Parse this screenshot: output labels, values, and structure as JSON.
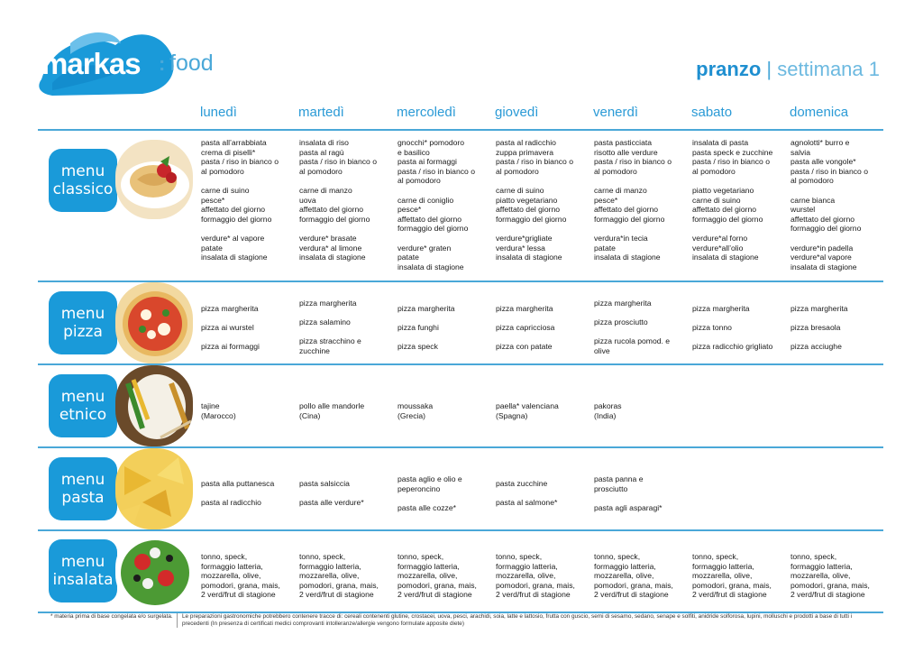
{
  "brand": {
    "name": "markas",
    "sub": "food"
  },
  "title": {
    "main": "pranzo",
    "separator": "|",
    "sub": "settimana 1"
  },
  "days": [
    "lunedì",
    "martedì",
    "mercoledì",
    "giovedì",
    "venerdì",
    "sabato",
    "domenica"
  ],
  "sections": [
    {
      "label_line1": "menu",
      "label_line2": "classico",
      "cells": [
        "pasta all’arrabbiata\ncrema di piselli*\npasta / riso in bianco o\nal pomodoro\n\ncarne di suino\npesce*\naffettato del giorno\nformaggio del giorno\n\nverdure* al vapore\npatate\ninsalata di stagione",
        "insalata di riso\npasta al ragù\npasta / riso in bianco o\nal pomodoro\n\ncarne di manzo\nuova\naffettato del giorno\nformaggio del giorno\n\nverdure* brasate\nverdura* al limone\ninsalata di stagione",
        "gnocchi* pomodoro\ne basilico\npasta ai formaggi\npasta / riso in bianco o\nal pomodoro\n\ncarne di coniglio\npesce*\naffettato del giorno\nformaggio del giorno\n\nverdure* graten\npatate\ninsalata di stagione",
        "pasta al radicchio\nzuppa primavera\npasta / riso in bianco o\nal pomodoro\n\ncarne di suino\npiatto vegetariano\naffettato del giorno\nformaggio del giorno\n\nverdure*grigliate\nverdura* lessa\ninsalata di stagione",
        "pasta pasticciata\nrisotto alle verdure\npasta / riso in bianco o\nal pomodoro\n\ncarne di manzo\npesce*\naffettato del giorno\nformaggio del giorno\n\nverdura*in tecia\npatate\ninsalata di stagione",
        "insalata di pasta\npasta speck e zucchine\npasta / riso in bianco o\nal pomodoro\n\npiatto vegetariano\ncarne di suino\naffettato del giorno\nformaggio del giorno\n\nverdure*al forno\nverdure*all’olio\ninsalata di stagione",
        "agnolotti* burro e\nsalvia\npasta alle vongole*\npasta / riso in bianco o\nal pomodoro\n\ncarne bianca\nwurstel\naffettato del giorno\nformaggio del giorno\n\nverdure*in padella\nverdure*al vapore\ninsalata di stagione"
      ]
    },
    {
      "label_line1": "menu",
      "label_line2": "pizza",
      "cells": [
        "pizza margherita\n\npizza ai wurstel\n\npizza ai formaggi",
        "pizza margherita\n\npizza salamino\n\npizza stracchino e\nzucchine",
        "pizza margherita\n\npizza funghi\n\npizza speck",
        "pizza margherita\n\npizza capricciosa\n\npizza con patate",
        "pizza margherita\n\npizza prosciutto\n\npizza rucola pomod. e\nolive",
        "pizza margherita\n\npizza tonno\n\npizza radicchio grigliato",
        "pizza margherita\n\npizza bresaola\n\npizza acciughe"
      ]
    },
    {
      "label_line1": "menu",
      "label_line2": "etnico",
      "cells": [
        "tajine\n(Marocco)",
        "pollo alle mandorle\n(Cina)",
        "moussaka\n(Grecia)",
        "paella* valenciana\n(Spagna)",
        "pakoras\n(India)",
        "",
        ""
      ]
    },
    {
      "label_line1": "menu",
      "label_line2": "pasta",
      "cells": [
        "pasta alla puttanesca\n\npasta al radicchio",
        "pasta salsiccia\n\npasta alle verdure*",
        "pasta aglio e olio e\npeperoncino\n\npasta alle cozze*",
        "pasta zucchine\n\npasta al salmone*",
        "pasta panna e\nprosciutto\n\npasta agli asparagi*",
        "",
        ""
      ]
    },
    {
      "label_line1": "menu",
      "label_line2": "insalata",
      "cells": [
        "tonno, speck,\nformaggio latteria,\nmozzarella, olive,\npomodori, grana, mais,\n2 verd/frut di stagione",
        "tonno, speck,\nformaggio latteria,\nmozzarella, olive,\npomodori, grana, mais,\n2 verd/frut di stagione",
        "tonno, speck,\nformaggio latteria,\nmozzarella, olive,\npomodori, grana, mais,\n2 verd/frut di stagione",
        "tonno, speck,\nformaggio latteria,\nmozzarella, olive,\npomodori, grana, mais,\n2 verd/frut di stagione",
        "tonno, speck,\nformaggio latteria,\nmozzarella, olive,\npomodori, grana, mais,\n2 verd/frut di stagione",
        "tonno, speck,\nformaggio latteria,\nmozzarella, olive,\npomodori, grana, mais,\n2 verd/frut di stagione",
        "tonno, speck,\nformaggio latteria,\nmozzarella, olive,\npomodori, grana, mais,\n2 verd/frut di stagione"
      ]
    }
  ],
  "footnotes": {
    "left": "* materia prima di base congelata e/o surgelata.",
    "right": "Le preparazioni gastronomiche potrebbero contenere tracce di: cereali contenenti glutine, crostacei, uova, pesci, arachidi, soia, latte e lattosio, frutta con guscio, semi di sesamo, sedano, senape e solfiti, anidride solforosa, lupini, molluschi e prodotti a base di tutti i precedenti (In presenza di certificati medici comprovanti intolleranze/allergie vengono formulate apposite diete)"
  },
  "colors": {
    "accent": "#1a9ad9",
    "accent_light": "#4aa8d8"
  }
}
